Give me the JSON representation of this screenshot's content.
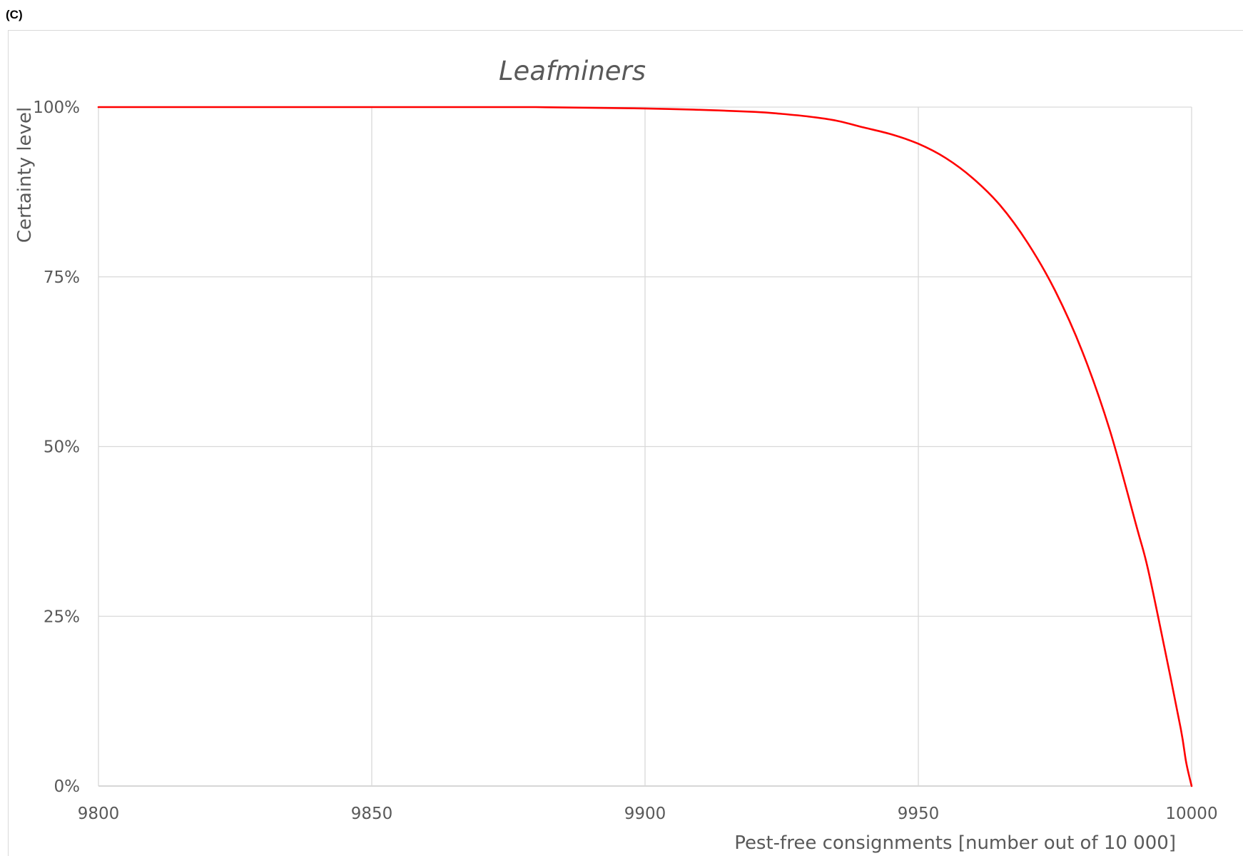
{
  "panel_label": "(C)",
  "chart_data": {
    "type": "line",
    "title": "Leafminers",
    "xlabel": "Pest-free consignments [number out of 10 000]",
    "ylabel": "Certainty level",
    "xlim": [
      9800,
      10000
    ],
    "ylim": [
      0,
      100
    ],
    "x_ticks": [
      9800,
      9850,
      9900,
      9950,
      10000
    ],
    "x_tick_labels": [
      "9800",
      "9850",
      "9900",
      "9950",
      "10000"
    ],
    "y_ticks": [
      0,
      25,
      50,
      75,
      100
    ],
    "y_tick_labels": [
      "0%",
      "25%",
      "50%",
      "75%",
      "100%"
    ],
    "grid": true,
    "legend": "none",
    "series": [
      {
        "color": "#ff0000",
        "x": [
          9800,
          9850,
          9880,
          9900,
          9910,
          9920,
          9925,
          9930,
          9935,
          9940,
          9945,
          9950,
          9955,
          9960,
          9965,
          9970,
          9975,
          9980,
          9985,
          9990,
          9992,
          9995,
          9998,
          9999,
          10000
        ],
        "y": [
          100,
          100,
          100,
          99.8,
          99.6,
          99.3,
          99.0,
          98.6,
          98.0,
          97.0,
          96.0,
          94.6,
          92.5,
          89.5,
          85.5,
          80.0,
          73.0,
          64.0,
          52.5,
          38.0,
          32.0,
          20.5,
          8.5,
          3.5,
          0
        ]
      }
    ]
  }
}
